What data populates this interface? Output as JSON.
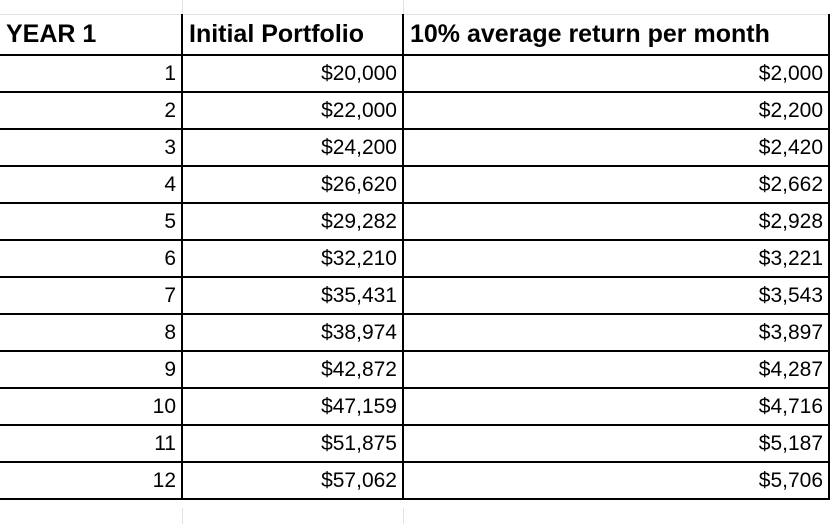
{
  "table": {
    "headers": [
      "YEAR 1",
      "Initial Portfolio",
      "10% average return per month"
    ],
    "rows": [
      [
        "1",
        "$20,000",
        "$2,000"
      ],
      [
        "2",
        "$22,000",
        "$2,200"
      ],
      [
        "3",
        "$24,200",
        "$2,420"
      ],
      [
        "4",
        "$26,620",
        "$2,662"
      ],
      [
        "5",
        "$29,282",
        "$2,928"
      ],
      [
        "6",
        "$32,210",
        "$3,221"
      ],
      [
        "7",
        "$35,431",
        "$3,543"
      ],
      [
        "8",
        "$38,974",
        "$3,897"
      ],
      [
        "9",
        "$42,872",
        "$4,287"
      ],
      [
        "10",
        "$47,159",
        "$4,716"
      ],
      [
        "11",
        "$51,875",
        "$5,187"
      ],
      [
        "12",
        "$57,062",
        "$5,706"
      ]
    ]
  }
}
